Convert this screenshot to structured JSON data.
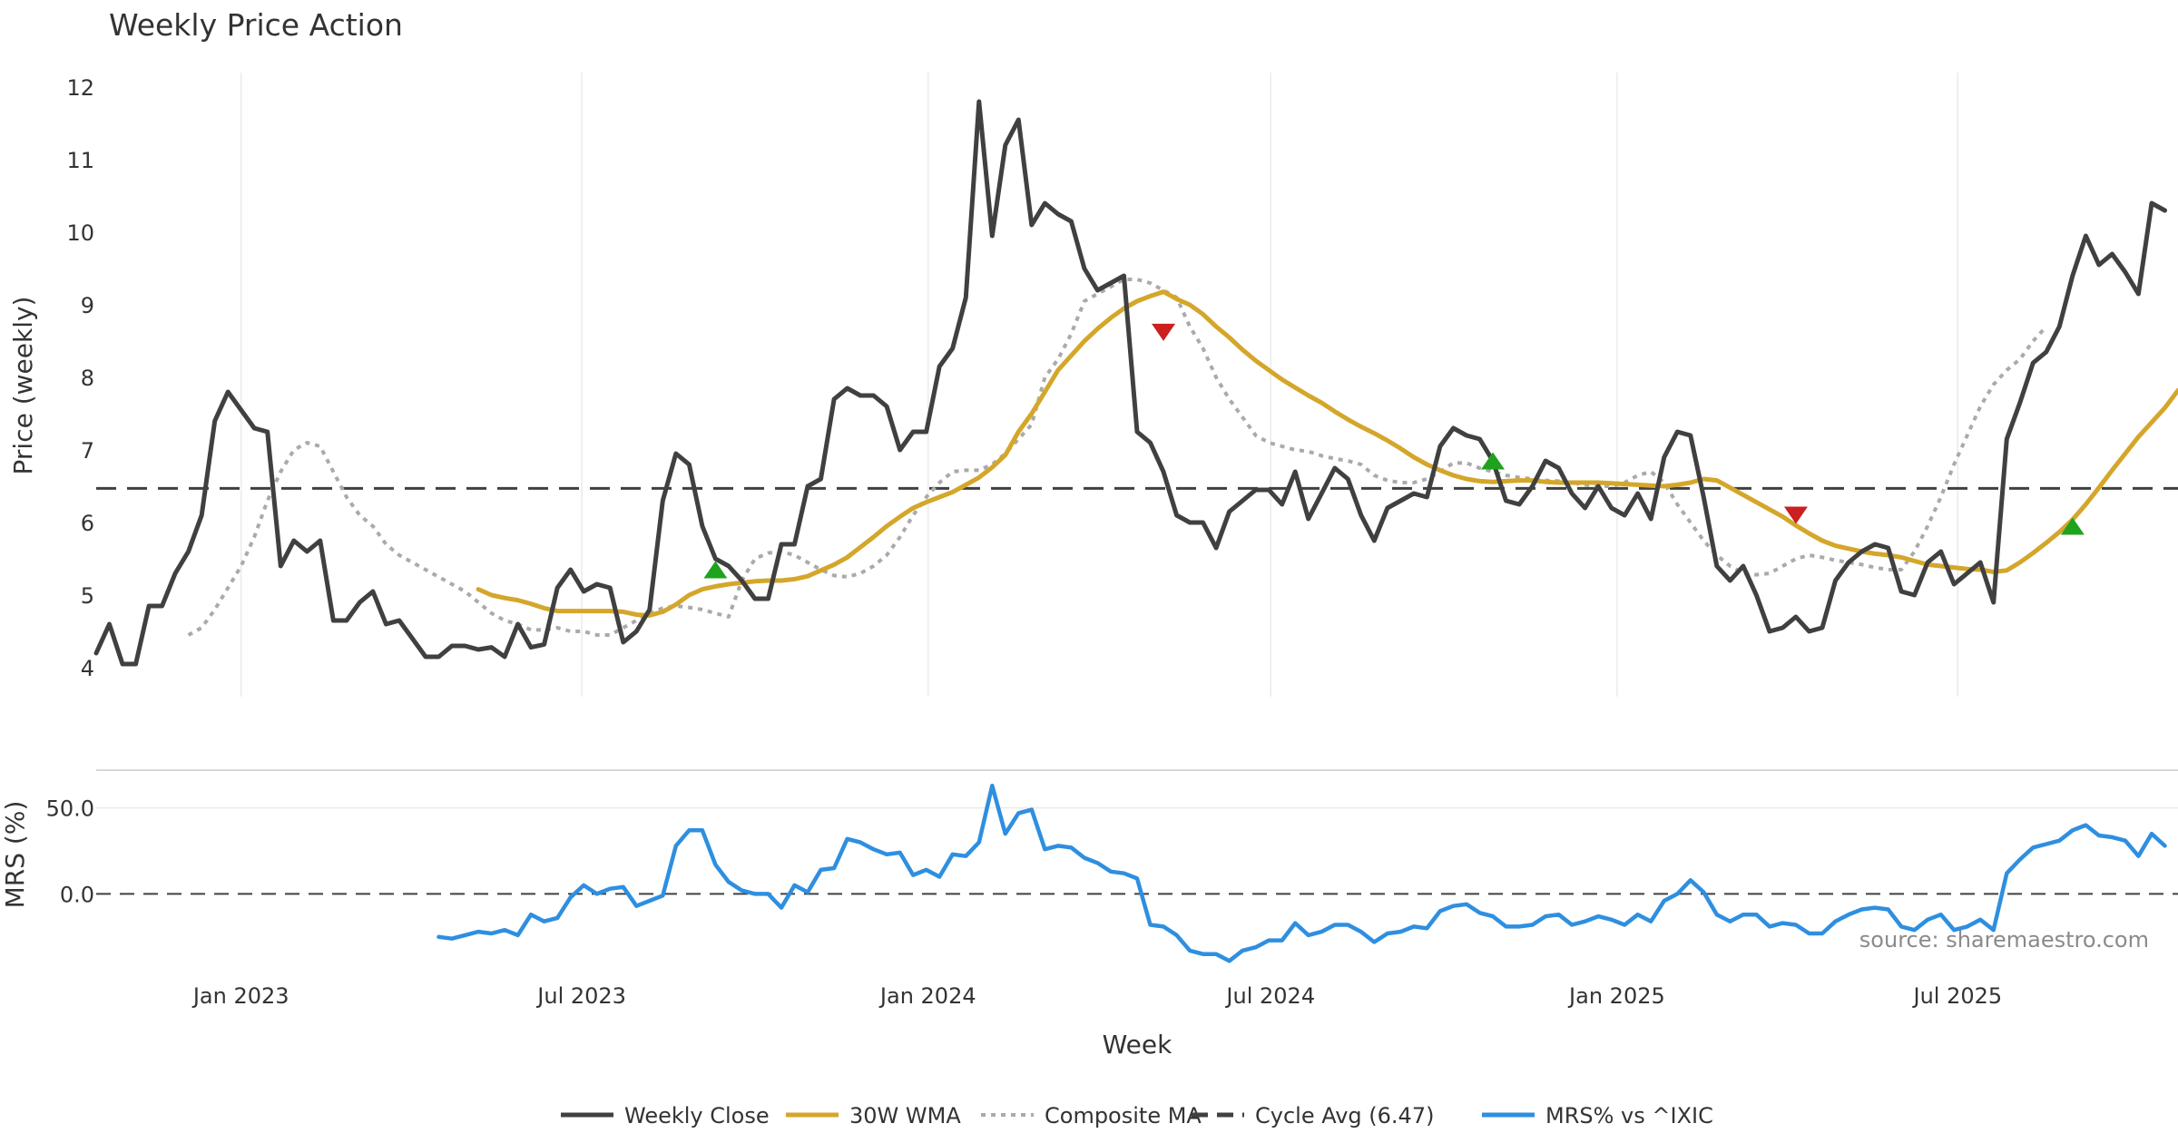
{
  "chart_data": [
    {
      "type": "line",
      "title": "Weekly Price Action",
      "ylabel": "Price (weekly)",
      "ylim": [
        3.6,
        12.3
      ],
      "yticks": [
        4,
        5,
        6,
        7,
        8,
        9,
        10,
        11,
        12
      ],
      "grid": "vertical",
      "x_start": "2022-10-16",
      "x_end": "2025-10-26",
      "series": [
        {
          "name": "Weekly Close",
          "color": "#404040",
          "style": "solid",
          "start": "2022-10-16",
          "step_days": 7,
          "values": [
            4.2,
            4.6,
            4.05,
            4.05,
            4.85,
            4.85,
            5.3,
            5.6,
            6.1,
            7.4,
            7.8,
            7.55,
            7.3,
            7.25,
            5.4,
            5.75,
            5.6,
            5.75,
            4.65,
            4.65,
            4.9,
            5.05,
            4.6,
            4.65,
            4.4,
            4.15,
            4.15,
            4.3,
            4.3,
            4.25,
            4.28,
            4.15,
            4.6,
            4.28,
            4.32,
            5.1,
            5.35,
            5.05,
            5.15,
            5.1,
            4.35,
            4.5,
            4.8,
            6.3,
            6.95,
            6.8,
            5.95,
            5.5,
            5.4,
            5.2,
            4.95,
            4.95,
            5.7,
            5.7,
            6.5,
            6.6,
            7.7,
            7.85,
            7.75,
            7.75,
            7.6,
            7.0,
            7.25,
            7.25,
            8.15,
            8.4,
            9.1,
            11.8,
            9.95,
            11.2,
            11.55,
            10.1,
            10.4,
            10.25,
            10.15,
            9.5,
            9.2,
            9.3,
            9.4,
            7.25,
            7.1,
            6.7,
            6.1,
            6.0,
            6.0,
            5.65,
            6.15,
            6.3,
            6.45,
            6.45,
            6.25,
            6.7,
            6.05,
            6.4,
            6.75,
            6.6,
            6.1,
            5.75,
            6.2,
            6.3,
            6.4,
            6.35,
            7.05,
            7.3,
            7.2,
            7.15,
            6.85,
            6.3,
            6.25,
            6.5,
            6.85,
            6.75,
            6.4,
            6.2,
            6.5,
            6.2,
            6.1,
            6.4,
            6.05,
            6.9,
            7.25,
            7.2,
            6.35,
            5.4,
            5.2,
            5.4,
            5.0,
            4.5,
            4.55,
            4.7,
            4.5,
            4.55,
            5.2,
            5.45,
            5.6,
            5.7,
            5.65,
            5.05,
            5.0,
            5.45,
            5.6,
            5.15,
            5.3,
            5.45,
            4.9,
            7.15,
            7.65,
            8.2,
            8.35,
            8.7,
            9.4,
            9.95,
            9.55,
            9.7,
            9.45,
            9.15,
            10.4,
            10.3
          ]
        },
        {
          "name": "30W WMA",
          "color": "#d4a62a",
          "style": "solid",
          "start": "2023-05-07",
          "step_days": 7,
          "values": [
            5.08,
            5.0,
            4.96,
            4.93,
            4.88,
            4.82,
            4.78,
            4.78,
            4.78,
            4.78,
            4.78,
            4.77,
            4.73,
            4.72,
            4.77,
            4.87,
            5.0,
            5.08,
            5.12,
            5.15,
            5.17,
            5.19,
            5.2,
            5.2,
            5.22,
            5.26,
            5.34,
            5.42,
            5.52,
            5.66,
            5.8,
            5.95,
            6.08,
            6.2,
            6.28,
            6.35,
            6.42,
            6.52,
            6.62,
            6.76,
            6.93,
            7.25,
            7.5,
            7.8,
            8.1,
            8.3,
            8.5,
            8.67,
            8.82,
            8.95,
            9.05,
            9.12,
            9.18,
            9.08,
            9.0,
            8.87,
            8.7,
            8.55,
            8.38,
            8.23,
            8.1,
            7.97,
            7.86,
            7.75,
            7.65,
            7.53,
            7.42,
            7.32,
            7.23,
            7.13,
            7.02,
            6.9,
            6.8,
            6.72,
            6.65,
            6.6,
            6.57,
            6.56,
            6.57,
            6.58,
            6.58,
            6.56,
            6.55,
            6.55,
            6.55,
            6.55,
            6.54,
            6.53,
            6.52,
            6.51,
            6.5,
            6.52,
            6.55,
            6.6,
            6.58,
            6.48,
            6.38,
            6.28,
            6.18,
            6.08,
            5.96,
            5.85,
            5.75,
            5.68,
            5.64,
            5.6,
            5.57,
            5.55,
            5.52,
            5.47,
            5.42,
            5.4,
            5.38,
            5.36,
            5.35,
            5.32,
            5.34,
            5.45,
            5.58,
            5.72,
            5.87,
            6.04,
            6.25,
            6.48,
            6.72,
            6.95,
            7.18,
            7.38,
            7.58,
            7.82
          ]
        },
        {
          "name": "Composite MA",
          "color": "#aaaaaa",
          "style": "dotted",
          "start": "2022-12-04",
          "step_days": 7,
          "values": [
            4.45,
            4.55,
            4.8,
            5.1,
            5.4,
            5.8,
            6.3,
            6.7,
            7.0,
            7.1,
            7.05,
            6.7,
            6.35,
            6.1,
            5.95,
            5.7,
            5.55,
            5.45,
            5.35,
            5.25,
            5.15,
            5.05,
            4.9,
            4.75,
            4.65,
            4.6,
            4.52,
            4.52,
            4.55,
            4.5,
            4.5,
            4.45,
            4.45,
            4.55,
            4.65,
            4.75,
            4.82,
            4.85,
            4.83,
            4.8,
            4.75,
            4.7,
            5.2,
            5.5,
            5.58,
            5.6,
            5.55,
            5.45,
            5.35,
            5.27,
            5.25,
            5.3,
            5.4,
            5.55,
            5.8,
            6.1,
            6.35,
            6.55,
            6.7,
            6.72,
            6.72,
            6.8,
            6.95,
            7.15,
            7.35,
            8.0,
            8.25,
            8.6,
            9.05,
            9.15,
            9.25,
            9.35,
            9.35,
            9.3,
            9.2,
            9.1,
            8.7,
            8.4,
            8.0,
            7.7,
            7.45,
            7.2,
            7.1,
            7.05,
            7.0,
            6.98,
            6.92,
            6.88,
            6.85,
            6.8,
            6.65,
            6.58,
            6.55,
            6.55,
            6.6,
            6.7,
            6.82,
            6.82,
            6.75,
            6.7,
            6.65,
            6.62,
            6.6,
            6.58,
            6.57,
            6.55,
            6.52,
            6.5,
            6.5,
            6.55,
            6.65,
            6.7,
            6.55,
            6.25,
            6.0,
            5.75,
            5.55,
            5.4,
            5.3,
            5.28,
            5.3,
            5.4,
            5.5,
            5.55,
            5.52,
            5.48,
            5.45,
            5.42,
            5.38,
            5.35,
            5.35,
            5.6,
            5.95,
            6.35,
            6.8,
            7.2,
            7.6,
            7.9,
            8.1,
            8.25,
            8.5,
            8.7
          ]
        },
        {
          "name": "Cycle Avg (6.47)",
          "color": "#404040",
          "style": "dashed",
          "constant": 6.47
        }
      ],
      "markers": [
        {
          "type": "buy",
          "date": "2023-09-10",
          "value": 5.35,
          "color": "#1fa31f"
        },
        {
          "type": "sell",
          "date": "2024-05-05",
          "value": 8.62,
          "color": "#cc1f1f"
        },
        {
          "type": "buy",
          "date": "2024-10-27",
          "value": 6.85,
          "color": "#1fa31f"
        },
        {
          "type": "sell",
          "date": "2025-04-06",
          "value": 6.1,
          "color": "#cc1f1f"
        },
        {
          "type": "buy",
          "date": "2025-08-31",
          "value": 5.95,
          "color": "#1fa31f"
        }
      ]
    },
    {
      "type": "line",
      "xlabel": "Week",
      "ylabel": "MRS (%)",
      "ylim": [
        -42,
        72
      ],
      "yticks": [
        "50.0",
        "0.0"
      ],
      "xticks": [
        "Jan 2023",
        "Jul 2023",
        "Jan 2024",
        "Jul 2024",
        "Jan 2025",
        "Jul 2025"
      ],
      "xtick_dates": [
        "2023-01-01",
        "2023-07-01",
        "2024-01-01",
        "2024-07-01",
        "2025-01-01",
        "2025-07-01"
      ],
      "reference_line": 0,
      "series": [
        {
          "name": "MRS% vs ^IXIC",
          "color": "#2e8fe0",
          "style": "solid",
          "start": "2023-04-16",
          "step_days": 7,
          "values": [
            -25,
            -26,
            -24,
            -22,
            -23,
            -21,
            -24,
            -12,
            -16,
            -14,
            -2,
            5,
            0,
            3,
            4,
            -7,
            -4,
            -1,
            28,
            37,
            37,
            17,
            7,
            2,
            0,
            0,
            -8,
            5,
            1,
            14,
            15,
            32,
            30,
            26,
            23,
            24,
            11,
            14,
            10,
            23,
            22,
            30,
            63,
            35,
            47,
            49,
            26,
            28,
            27,
            21,
            18,
            13,
            12,
            9,
            -18,
            -19,
            -24,
            -33,
            -35,
            -35,
            -39,
            -33,
            -31,
            -27,
            -27,
            -17,
            -24,
            -22,
            -18,
            -18,
            -22,
            -28,
            -23,
            -22,
            -19,
            -20,
            -10,
            -7,
            -6,
            -11,
            -13,
            -19,
            -19,
            -18,
            -13,
            -12,
            -18,
            -16,
            -13,
            -15,
            -18,
            -12,
            -16,
            -4,
            0,
            8,
            1,
            -12,
            -16,
            -12,
            -12,
            -19,
            -17,
            -18,
            -23,
            -23,
            -16,
            -12,
            -9,
            -8,
            -9,
            -19,
            -21,
            -15,
            -12,
            -21,
            -19,
            -15,
            -21,
            12,
            20,
            27,
            29,
            31,
            37,
            40,
            34,
            33,
            31,
            22,
            35,
            28
          ]
        }
      ],
      "annotations": [
        "source: sharemaestro.com"
      ]
    }
  ],
  "legend": [
    {
      "label": "Weekly Close",
      "color": "#404040",
      "style": "solid"
    },
    {
      "label": "30W WMA",
      "color": "#d4a62a",
      "style": "solid"
    },
    {
      "label": "Composite MA",
      "color": "#aaaaaa",
      "style": "dotted"
    },
    {
      "label": "Cycle Avg (6.47)",
      "color": "#404040",
      "style": "dashed"
    },
    {
      "label": "MRS% vs ^IXIC",
      "color": "#2e8fe0",
      "style": "solid"
    }
  ],
  "legend_position": "bottom-center"
}
